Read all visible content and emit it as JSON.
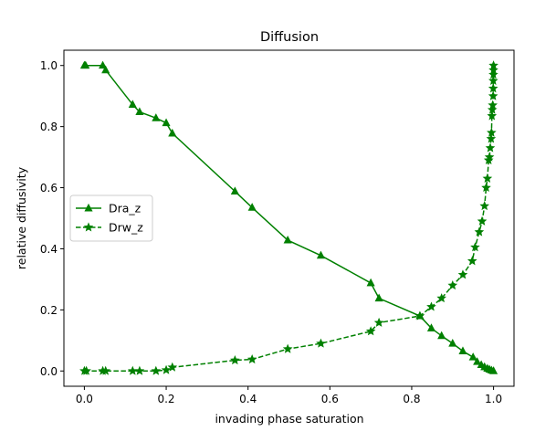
{
  "chart_data": {
    "type": "line",
    "title": "Diffusion",
    "xlabel": "invading phase saturation",
    "ylabel": "relative diffusivity",
    "xlim": [
      -0.05,
      1.05
    ],
    "ylim": [
      -0.05,
      1.05
    ],
    "xticks": [
      0.0,
      0.2,
      0.4,
      0.6,
      0.8,
      1.0
    ],
    "xtick_labels": [
      "0.0",
      "0.2",
      "0.4",
      "0.6",
      "0.8",
      "1.0"
    ],
    "yticks": [
      0.0,
      0.2,
      0.4,
      0.6,
      0.8,
      1.0
    ],
    "ytick_labels": [
      "0.0",
      "0.2",
      "0.4",
      "0.6",
      "0.8",
      "1.0"
    ],
    "grid": false,
    "legend_position": "center-left",
    "series": [
      {
        "name": "Dra_z",
        "color": "#008000",
        "linestyle": "solid",
        "marker": "triangle",
        "points": [
          [
            0.0,
            1.0
          ],
          [
            0.003,
            1.0
          ],
          [
            0.045,
            1.0
          ],
          [
            0.052,
            0.985
          ],
          [
            0.118,
            0.872
          ],
          [
            0.135,
            0.848
          ],
          [
            0.175,
            0.828
          ],
          [
            0.2,
            0.812
          ],
          [
            0.215,
            0.778
          ],
          [
            0.368,
            0.588
          ],
          [
            0.41,
            0.535
          ],
          [
            0.497,
            0.428
          ],
          [
            0.578,
            0.378
          ],
          [
            0.7,
            0.288
          ],
          [
            0.72,
            0.238
          ],
          [
            0.82,
            0.18
          ],
          [
            0.848,
            0.14
          ],
          [
            0.873,
            0.115
          ],
          [
            0.9,
            0.09
          ],
          [
            0.925,
            0.065
          ],
          [
            0.95,
            0.045
          ],
          [
            0.96,
            0.03
          ],
          [
            0.97,
            0.02
          ],
          [
            0.978,
            0.013
          ],
          [
            0.985,
            0.008
          ],
          [
            0.99,
            0.005
          ],
          [
            0.995,
            0.002
          ],
          [
            1.0,
            0.0
          ]
        ]
      },
      {
        "name": "Drw_z",
        "color": "#008000",
        "linestyle": "dashed",
        "marker": "star",
        "points": [
          [
            0.0,
            0.0
          ],
          [
            0.005,
            0.0
          ],
          [
            0.045,
            0.0
          ],
          [
            0.052,
            0.0
          ],
          [
            0.118,
            0.0
          ],
          [
            0.135,
            0.0
          ],
          [
            0.175,
            0.0
          ],
          [
            0.2,
            0.003
          ],
          [
            0.215,
            0.012
          ],
          [
            0.368,
            0.035
          ],
          [
            0.41,
            0.038
          ],
          [
            0.497,
            0.072
          ],
          [
            0.578,
            0.09
          ],
          [
            0.7,
            0.13
          ],
          [
            0.72,
            0.158
          ],
          [
            0.82,
            0.18
          ],
          [
            0.848,
            0.21
          ],
          [
            0.873,
            0.238
          ],
          [
            0.9,
            0.28
          ],
          [
            0.925,
            0.315
          ],
          [
            0.948,
            0.36
          ],
          [
            0.955,
            0.405
          ],
          [
            0.965,
            0.455
          ],
          [
            0.972,
            0.49
          ],
          [
            0.978,
            0.54
          ],
          [
            0.982,
            0.6
          ],
          [
            0.985,
            0.63
          ],
          [
            0.988,
            0.69
          ],
          [
            0.99,
            0.7
          ],
          [
            0.992,
            0.73
          ],
          [
            0.994,
            0.76
          ],
          [
            0.995,
            0.78
          ],
          [
            0.996,
            0.835
          ],
          [
            0.997,
            0.855
          ],
          [
            0.998,
            0.87
          ],
          [
            0.999,
            0.9
          ],
          [
            0.9992,
            0.925
          ],
          [
            0.9994,
            0.95
          ],
          [
            0.9996,
            0.97
          ],
          [
            0.9998,
            0.985
          ],
          [
            1.0,
            1.0
          ]
        ]
      }
    ]
  }
}
